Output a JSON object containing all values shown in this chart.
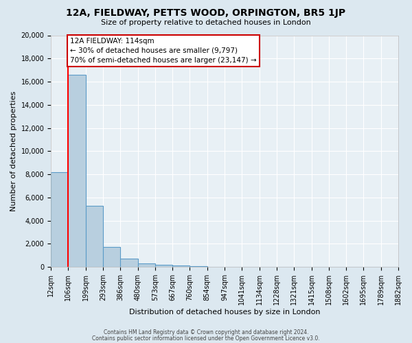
{
  "title": "12A, FIELDWAY, PETTS WOOD, ORPINGTON, BR5 1JP",
  "subtitle": "Size of property relative to detached houses in London",
  "xlabel": "Distribution of detached houses by size in London",
  "ylabel": "Number of detached properties",
  "bar_values": [
    8200,
    16600,
    5300,
    1750,
    750,
    300,
    200,
    150,
    50,
    0,
    0,
    0,
    0,
    0,
    0,
    0,
    0,
    0,
    0,
    0
  ],
  "bin_labels": [
    "12sqm",
    "106sqm",
    "199sqm",
    "293sqm",
    "386sqm",
    "480sqm",
    "573sqm",
    "667sqm",
    "760sqm",
    "854sqm",
    "947sqm",
    "1041sqm",
    "1134sqm",
    "1228sqm",
    "1321sqm",
    "1415sqm",
    "1508sqm",
    "1602sqm",
    "1695sqm",
    "1789sqm",
    "1882sqm"
  ],
  "bar_color": "#b8cfdf",
  "bar_edge_color": "#5b9bc8",
  "red_line_x": 1,
  "annotation_title": "12A FIELDWAY: 114sqm",
  "annotation_line1": "← 30% of detached houses are smaller (9,797)",
  "annotation_line2": "70% of semi-detached houses are larger (23,147) →",
  "annotation_box_facecolor": "#ffffff",
  "annotation_box_edgecolor": "#cc0000",
  "ylim": [
    0,
    20000
  ],
  "yticks": [
    0,
    2000,
    4000,
    6000,
    8000,
    10000,
    12000,
    14000,
    16000,
    18000,
    20000
  ],
  "footer1": "Contains HM Land Registry data © Crown copyright and database right 2024.",
  "footer2": "Contains public sector information licensed under the Open Government Licence v3.0.",
  "bg_color": "#dce8f0",
  "plot_bg_color": "#e8f0f5",
  "grid_color": "#ffffff",
  "title_fontsize": 10,
  "subtitle_fontsize": 8,
  "xlabel_fontsize": 8,
  "ylabel_fontsize": 8,
  "tick_fontsize": 7,
  "ann_fontsize": 7.5,
  "footer_fontsize": 5.5
}
